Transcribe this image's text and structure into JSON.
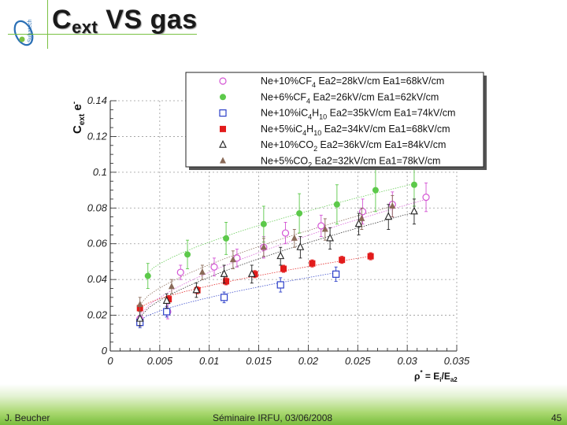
{
  "slide": {
    "title_main": "C",
    "title_sub": "ext",
    "title_rest": " VS gas",
    "footer_author": "J. Beucher",
    "footer_event": "Séminaire IRFU, 03/06/2008",
    "page_number": "45",
    "logo_text": "Subatech",
    "accent_color": "#7ac143"
  },
  "chart_data": {
    "type": "scatter",
    "ylabel_main": "C",
    "ylabel_sub": "ext",
    "ylabel_rest": " e",
    "ylabel_sup": "-",
    "xlabel_main": "ρ",
    "xlabel_sup": "*",
    "xlabel_mid": " = E",
    "xlabel_sub1": "i",
    "xlabel_slash": "/E",
    "xlabel_sub2": "a2",
    "xlim": [
      0,
      0.035
    ],
    "ylim": [
      0,
      0.14
    ],
    "x_ticks": [
      0,
      0.005,
      0.01,
      0.015,
      0.02,
      0.025,
      0.03,
      0.035
    ],
    "x_tick_labels": [
      "0",
      "0.005",
      "0.01",
      "0.015",
      "0.02",
      "0.025",
      "0.03",
      "0.035"
    ],
    "y_ticks": [
      0,
      0.02,
      0.04,
      0.06,
      0.08,
      0.1,
      0.12,
      0.14
    ],
    "y_tick_labels": [
      "0",
      "0.02",
      "0.04",
      "0.06",
      "0.08",
      "0.1",
      "0.12",
      "0.14"
    ],
    "grid": true,
    "legend_position": "top-right",
    "series": [
      {
        "legend_parts": [
          [
            "Ne+10%CF",
            ""
          ],
          [
            "4",
            "sub"
          ],
          [
            "  Ea2=28kV/cm   Ea1=68kV/cm",
            ""
          ]
        ],
        "marker": "circle-open",
        "color": "#d455d4",
        "x": [
          0.003,
          0.0058,
          0.0071,
          0.0105,
          0.0128,
          0.0155,
          0.0177,
          0.0213,
          0.0255,
          0.0285,
          0.0319
        ],
        "y": [
          0.018,
          0.022,
          0.044,
          0.047,
          0.052,
          0.058,
          0.066,
          0.07,
          0.078,
          0.082,
          0.086
        ],
        "err": [
          0.004,
          0.004,
          0.004,
          0.005,
          0.005,
          0.006,
          0.006,
          0.006,
          0.007,
          0.007,
          0.008
        ],
        "fit": [
          [
            0.003,
            0.02
          ],
          [
            0.032,
            0.085
          ]
        ]
      },
      {
        "legend_parts": [
          [
            "Ne+6%CF",
            ""
          ],
          [
            "4",
            "sub"
          ],
          [
            "  Ea2=26kV/cm   Ea1=62kV/cm",
            ""
          ]
        ],
        "marker": "circle-filled",
        "color": "#5cc94a",
        "x": [
          0.0038,
          0.0078,
          0.0117,
          0.0155,
          0.0191,
          0.0229,
          0.0268,
          0.0307
        ],
        "y": [
          0.042,
          0.054,
          0.063,
          0.071,
          0.077,
          0.082,
          0.09,
          0.093
        ],
        "err": [
          0.007,
          0.008,
          0.009,
          0.01,
          0.011,
          0.011,
          0.012,
          0.012
        ],
        "fit": [
          [
            0.0035,
            0.042
          ],
          [
            0.031,
            0.094
          ]
        ]
      },
      {
        "legend_parts": [
          [
            "Ne+10%iC",
            ""
          ],
          [
            "4",
            "sub"
          ],
          [
            "H",
            ""
          ],
          [
            "10",
            "sub"
          ],
          [
            "  Ea2=35kV/cm   Ea1=74kV/cm",
            ""
          ]
        ],
        "marker": "square-open",
        "color": "#2c3fc9",
        "x": [
          0.003,
          0.0057,
          0.0115,
          0.0172,
          0.0228
        ],
        "y": [
          0.016,
          0.022,
          0.03,
          0.037,
          0.043
        ],
        "err": [
          0.003,
          0.003,
          0.003,
          0.004,
          0.004
        ],
        "fit": [
          [
            0.003,
            0.017
          ],
          [
            0.023,
            0.044
          ]
        ]
      },
      {
        "legend_parts": [
          [
            "Ne+5%iC",
            ""
          ],
          [
            "4",
            "sub"
          ],
          [
            "H",
            ""
          ],
          [
            "10",
            "sub"
          ],
          [
            "  Ea2=34kV/cm   Ea1=68kV/cm",
            ""
          ]
        ],
        "marker": "square-filled",
        "color": "#e21b1b",
        "x": [
          0.003,
          0.0059,
          0.0088,
          0.0117,
          0.0146,
          0.0175,
          0.0204,
          0.0234,
          0.0263
        ],
        "y": [
          0.024,
          0.029,
          0.034,
          0.039,
          0.043,
          0.046,
          0.049,
          0.051,
          0.053
        ],
        "err": [
          0.002,
          0.002,
          0.002,
          0.002,
          0.002,
          0.002,
          0.002,
          0.002,
          0.002
        ],
        "fit": [
          [
            0.003,
            0.024
          ],
          [
            0.0263,
            0.053
          ]
        ]
      },
      {
        "legend_parts": [
          [
            "Ne+10%CO",
            ""
          ],
          [
            "2",
            "sub"
          ],
          [
            "  Ea2=36kV/cm   Ea1=84kV/cm",
            ""
          ]
        ],
        "marker": "triangle-open",
        "color": "#222222",
        "x": [
          0.003,
          0.0057,
          0.0087,
          0.0115,
          0.0143,
          0.0172,
          0.0192,
          0.0222,
          0.0251,
          0.0281,
          0.0307
        ],
        "y": [
          0.018,
          0.028,
          0.034,
          0.043,
          0.043,
          0.053,
          0.058,
          0.063,
          0.071,
          0.075,
          0.078
        ],
        "err": [
          0.004,
          0.004,
          0.004,
          0.005,
          0.005,
          0.005,
          0.006,
          0.006,
          0.006,
          0.007,
          0.007
        ],
        "fit": [
          [
            0.003,
            0.019
          ],
          [
            0.031,
            0.078
          ]
        ]
      },
      {
        "legend_parts": [
          [
            "Ne+5%CO",
            ""
          ],
          [
            "2",
            "sub"
          ],
          [
            "  Ea2=32kV/cm   Ea1=78kV/cm",
            ""
          ]
        ],
        "marker": "triangle-filled",
        "color": "#8a6a58",
        "x": [
          0.003,
          0.0062,
          0.0093,
          0.0124,
          0.0155,
          0.0186,
          0.0217,
          0.0254,
          0.0285
        ],
        "y": [
          0.026,
          0.036,
          0.044,
          0.051,
          0.058,
          0.063,
          0.068,
          0.074,
          0.081
        ],
        "err": [
          0.004,
          0.004,
          0.004,
          0.005,
          0.005,
          0.005,
          0.006,
          0.006,
          0.006
        ],
        "fit": [
          [
            0.003,
            0.026
          ],
          [
            0.0285,
            0.081
          ]
        ]
      }
    ]
  }
}
